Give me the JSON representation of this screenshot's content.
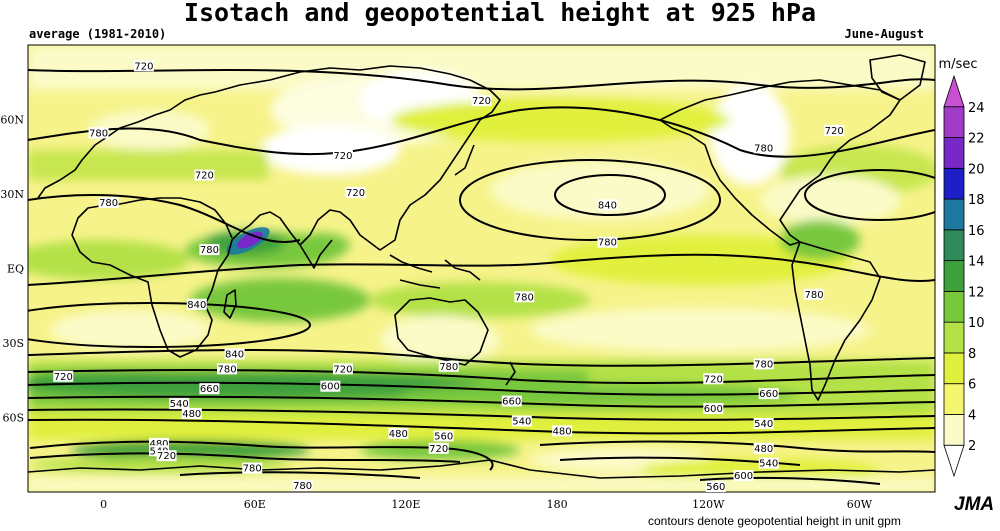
{
  "title": "Isotach and geopotential height at 925 hPa",
  "subtitle_left": "average (1981-2010)",
  "subtitle_right": "June-August",
  "footnote": "contours denote geopotential height in unit gpm",
  "logo": "JMA",
  "colorbar": {
    "unit": "m/sec",
    "levels": [
      2,
      4,
      6,
      8,
      10,
      12,
      14,
      16,
      18,
      20,
      22,
      24
    ],
    "colors": [
      "#ffffff",
      "#fbfbc8",
      "#f5f56e",
      "#e1f03c",
      "#b4e146",
      "#78c83c",
      "#3ca03c",
      "#2d8c5a",
      "#1e78a0",
      "#1e1ec8",
      "#7828c8",
      "#a03cc8",
      "#c850d2"
    ]
  },
  "map": {
    "lat_labels": [
      "60N",
      "30N",
      "EQ",
      "30S",
      "60S"
    ],
    "lat_values": [
      60,
      30,
      0,
      -30,
      -60
    ],
    "lon_labels": [
      "0",
      "60E",
      "120E",
      "180",
      "120W",
      "60W"
    ],
    "lon_values": [
      0,
      60,
      120,
      180,
      240,
      300
    ],
    "lon_range": [
      -30,
      330
    ],
    "lat_range": [
      -90,
      90
    ]
  },
  "contour_labels": [
    {
      "text": "720",
      "lon": 16,
      "lat": 81
    },
    {
      "text": "720",
      "lon": 150,
      "lat": 67
    },
    {
      "text": "720",
      "lon": 290,
      "lat": 55
    },
    {
      "text": "780",
      "lon": -2,
      "lat": 54
    },
    {
      "text": "780",
      "lon": 262,
      "lat": 48
    },
    {
      "text": "720",
      "lon": 95,
      "lat": 45
    },
    {
      "text": "720",
      "lon": 40,
      "lat": 37
    },
    {
      "text": "720",
      "lon": 100,
      "lat": 30
    },
    {
      "text": "780",
      "lon": 2,
      "lat": 26
    },
    {
      "text": "840",
      "lon": 200,
      "lat": 25
    },
    {
      "text": "780",
      "lon": 200,
      "lat": 10
    },
    {
      "text": "780",
      "lon": 42,
      "lat": 7
    },
    {
      "text": "840",
      "lon": 37,
      "lat": -15
    },
    {
      "text": "780",
      "lon": 167,
      "lat": -12
    },
    {
      "text": "780",
      "lon": 282,
      "lat": -11
    },
    {
      "text": "840",
      "lon": 52,
      "lat": -35
    },
    {
      "text": "780",
      "lon": 49,
      "lat": -41
    },
    {
      "text": "720",
      "lon": 95,
      "lat": -41
    },
    {
      "text": "780",
      "lon": 137,
      "lat": -40
    },
    {
      "text": "780",
      "lon": 262,
      "lat": -39
    },
    {
      "text": "720",
      "lon": -16,
      "lat": -44
    },
    {
      "text": "720",
      "lon": 242,
      "lat": -45
    },
    {
      "text": "660",
      "lon": 42,
      "lat": -49
    },
    {
      "text": "600",
      "lon": 90,
      "lat": -48
    },
    {
      "text": "660",
      "lon": 162,
      "lat": -54
    },
    {
      "text": "660",
      "lon": 264,
      "lat": -51
    },
    {
      "text": "540",
      "lon": 30,
      "lat": -55
    },
    {
      "text": "480",
      "lon": 35,
      "lat": -59
    },
    {
      "text": "600",
      "lon": 242,
      "lat": -57
    },
    {
      "text": "540",
      "lon": 166,
      "lat": -62
    },
    {
      "text": "540",
      "lon": 262,
      "lat": -63
    },
    {
      "text": "480",
      "lon": 182,
      "lat": -66
    },
    {
      "text": "480",
      "lon": 117,
      "lat": -67
    },
    {
      "text": "560",
      "lon": 135,
      "lat": -68
    },
    {
      "text": "480",
      "lon": 22,
      "lat": -71
    },
    {
      "text": "540",
      "lon": 22,
      "lat": -74
    },
    {
      "text": "720",
      "lon": 25,
      "lat": -76
    },
    {
      "text": "720",
      "lon": 133,
      "lat": -73
    },
    {
      "text": "480",
      "lon": 262,
      "lat": -73
    },
    {
      "text": "540",
      "lon": 264,
      "lat": -79
    },
    {
      "text": "780",
      "lon": 59,
      "lat": -81
    },
    {
      "text": "600",
      "lon": 254,
      "lat": -84
    },
    {
      "text": "780",
      "lon": 79,
      "lat": -88
    },
    {
      "text": "560",
      "lon": 243,
      "lat": -89
    }
  ]
}
